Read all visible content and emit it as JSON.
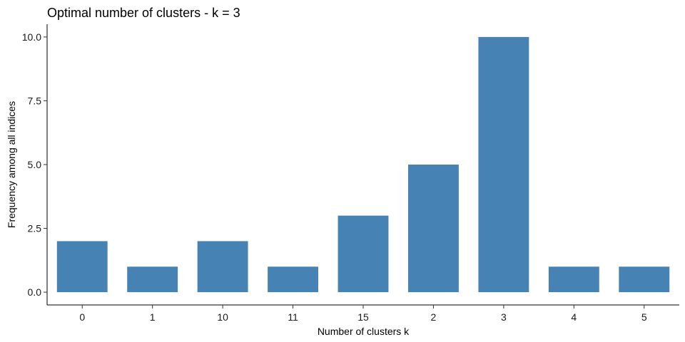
{
  "chart_data": {
    "type": "bar",
    "title": "Optimal number of clusters - k = 3",
    "xlabel": "Number of clusters k",
    "ylabel": "Frequency among all indices",
    "categories": [
      "0",
      "1",
      "10",
      "11",
      "15",
      "2",
      "3",
      "4",
      "5"
    ],
    "values": [
      2,
      1,
      2,
      1,
      3,
      5,
      10,
      1,
      1
    ],
    "ylim": [
      -0.5,
      10.5
    ],
    "yticks": [
      0,
      2.5,
      5,
      7.5,
      10
    ],
    "ytick_labels": [
      "0.0",
      "2.5",
      "5.0",
      "7.5",
      "10.0"
    ],
    "bar_color": "#4682B4",
    "grid": false,
    "legend": "none"
  }
}
